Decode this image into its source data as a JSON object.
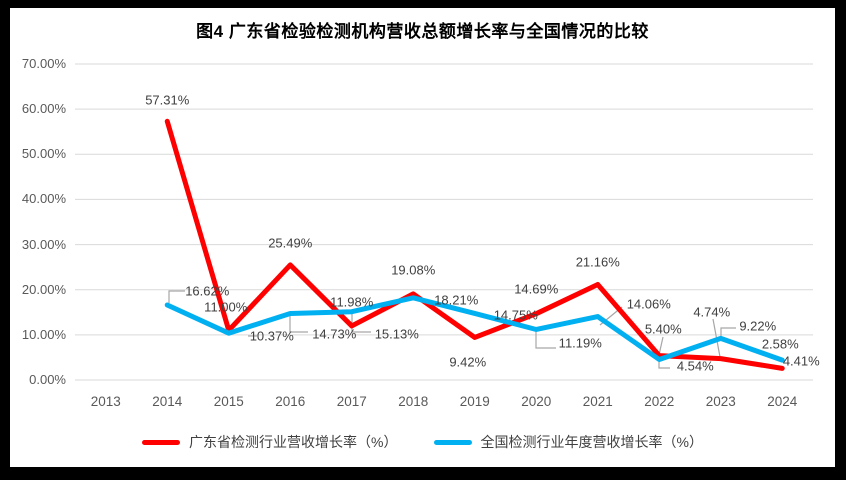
{
  "frame": {
    "border_color": "#000000",
    "panel_color": "#ffffff"
  },
  "chart_data": {
    "type": "line",
    "title": "图4  广东省检验检测机构营收总额增长率与全国情况的比较",
    "x": [
      "2013",
      "2014",
      "2015",
      "2016",
      "2017",
      "2018",
      "2019",
      "2020",
      "2021",
      "2022",
      "2023",
      "2024"
    ],
    "series": [
      {
        "name": "广东省检测行业营收增长率（%）",
        "color": "#FF0000",
        "values": [
          null,
          57.31,
          11.0,
          25.49,
          11.98,
          19.08,
          9.42,
          14.69,
          21.16,
          5.4,
          4.74,
          2.58
        ]
      },
      {
        "name": "全国检测行业年度营收增长率（%）",
        "color": "#00B0F0",
        "values": [
          null,
          16.62,
          10.37,
          14.73,
          15.13,
          18.21,
          14.75,
          11.19,
          14.06,
          4.54,
          9.22,
          4.41
        ]
      }
    ],
    "xlabel": "",
    "ylabel": "",
    "ylim": [
      0,
      70
    ],
    "yticks": [
      "0.00%",
      "10.00%",
      "20.00%",
      "30.00%",
      "40.00%",
      "50.00%",
      "60.00%",
      "70.00%"
    ],
    "grid": true,
    "legend_position": "bottom",
    "label_format": "0.00%",
    "colors": {
      "grid": "#D9D9D9",
      "axis_text": "#595959",
      "data_label_text": "#404040",
      "leader_line": "#A6A6A6",
      "title_text": "#000000"
    }
  }
}
